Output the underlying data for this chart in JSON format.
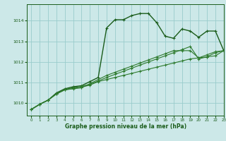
{
  "background_color": "#cce8e8",
  "grid_color": "#99cccc",
  "line_color_main": "#1a5c1a",
  "line_color_secondary": "#2d7a2d",
  "xlabel": "Graphe pression niveau de la mer (hPa)",
  "ylim": [
    1009.4,
    1014.8
  ],
  "xlim": [
    -0.5,
    23
  ],
  "yticks": [
    1010,
    1011,
    1012,
    1013,
    1014
  ],
  "xticks": [
    0,
    1,
    2,
    3,
    4,
    5,
    6,
    7,
    8,
    9,
    10,
    11,
    12,
    13,
    14,
    15,
    16,
    17,
    18,
    19,
    20,
    21,
    22,
    23
  ],
  "series": [
    [
      1009.7,
      1009.95,
      1010.15,
      1010.5,
      1010.7,
      1010.8,
      1010.85,
      1011.05,
      1011.25,
      1013.65,
      1014.05,
      1014.05,
      1014.25,
      1014.35,
      1014.35,
      1013.9,
      1013.25,
      1013.15,
      1013.6,
      1013.5,
      1013.2,
      1013.5,
      1013.5,
      1012.55
    ],
    [
      1009.7,
      1009.95,
      1010.15,
      1010.45,
      1010.65,
      1010.7,
      1010.75,
      1010.95,
      1011.15,
      1011.35,
      1011.5,
      1011.65,
      1011.8,
      1011.95,
      1012.1,
      1012.25,
      1012.4,
      1012.55,
      1012.55,
      1012.55,
      1012.2,
      1012.35,
      1012.5,
      1012.55
    ],
    [
      1009.7,
      1009.95,
      1010.15,
      1010.45,
      1010.65,
      1010.72,
      1010.78,
      1010.88,
      1011.05,
      1011.15,
      1011.25,
      1011.35,
      1011.45,
      1011.55,
      1011.65,
      1011.75,
      1011.85,
      1011.95,
      1012.05,
      1012.15,
      1012.2,
      1012.25,
      1012.3,
      1012.55
    ],
    [
      1009.7,
      1009.95,
      1010.15,
      1010.45,
      1010.67,
      1010.76,
      1010.82,
      1010.92,
      1011.08,
      1011.25,
      1011.4,
      1011.55,
      1011.7,
      1011.85,
      1012.0,
      1012.15,
      1012.3,
      1012.45,
      1012.6,
      1012.75,
      1012.15,
      1012.25,
      1012.45,
      1012.55
    ]
  ]
}
